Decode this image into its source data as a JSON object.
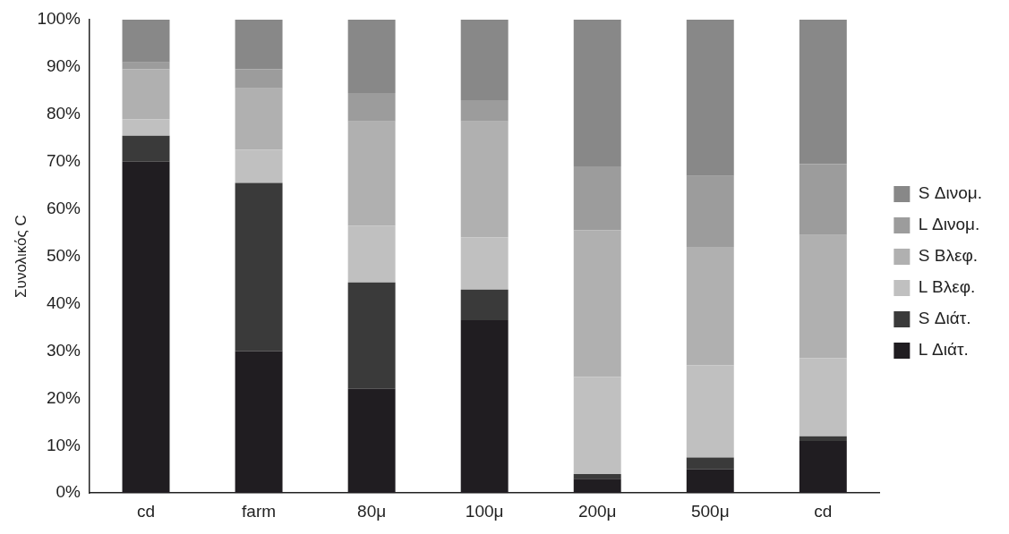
{
  "chart_data": {
    "type": "bar",
    "stacked": true,
    "ylabel": "Συνολικός C",
    "categories": [
      "cd",
      "farm",
      "80μ",
      "100μ",
      "200μ",
      "500μ",
      "cd"
    ],
    "ylim": [
      0,
      100
    ],
    "yticks": [
      {
        "value": 0,
        "label": "0%"
      },
      {
        "value": 10,
        "label": "10%"
      },
      {
        "value": 20,
        "label": "20%"
      },
      {
        "value": 30,
        "label": "30%"
      },
      {
        "value": 40,
        "label": "40%"
      },
      {
        "value": 50,
        "label": "50%"
      },
      {
        "value": 60,
        "label": "60%"
      },
      {
        "value": 70,
        "label": "70%"
      },
      {
        "value": 80,
        "label": "80%"
      },
      {
        "value": 90,
        "label": "90%"
      },
      {
        "value": 100,
        "label": "100%"
      }
    ],
    "grid": false,
    "legend": "right",
    "series": [
      {
        "name": "L Διάτ.",
        "color": "#201d21",
        "values": [
          70,
          30,
          22,
          36.5,
          3,
          5,
          11
        ]
      },
      {
        "name": "S Διάτ.",
        "color": "#3a3a3a",
        "values": [
          5.5,
          35.5,
          22.5,
          6.5,
          1,
          2.5,
          1
        ]
      },
      {
        "name": "L Βλεφ.",
        "color": "#c0c0c0",
        "values": [
          3.5,
          7,
          12,
          11,
          20.5,
          19.5,
          16.5
        ]
      },
      {
        "name": "S Βλεφ.",
        "color": "#b0b0b0",
        "values": [
          10.5,
          13,
          22,
          24.5,
          31,
          25,
          26
        ]
      },
      {
        "name": "L Δινομ.",
        "color": "#9c9c9c",
        "values": [
          1.5,
          4,
          6,
          4.5,
          13.5,
          15,
          15
        ]
      },
      {
        "name": "S Δινομ.",
        "color": "#888888",
        "values": [
          9,
          10.5,
          15.5,
          17,
          31,
          33,
          30.5
        ]
      }
    ]
  }
}
